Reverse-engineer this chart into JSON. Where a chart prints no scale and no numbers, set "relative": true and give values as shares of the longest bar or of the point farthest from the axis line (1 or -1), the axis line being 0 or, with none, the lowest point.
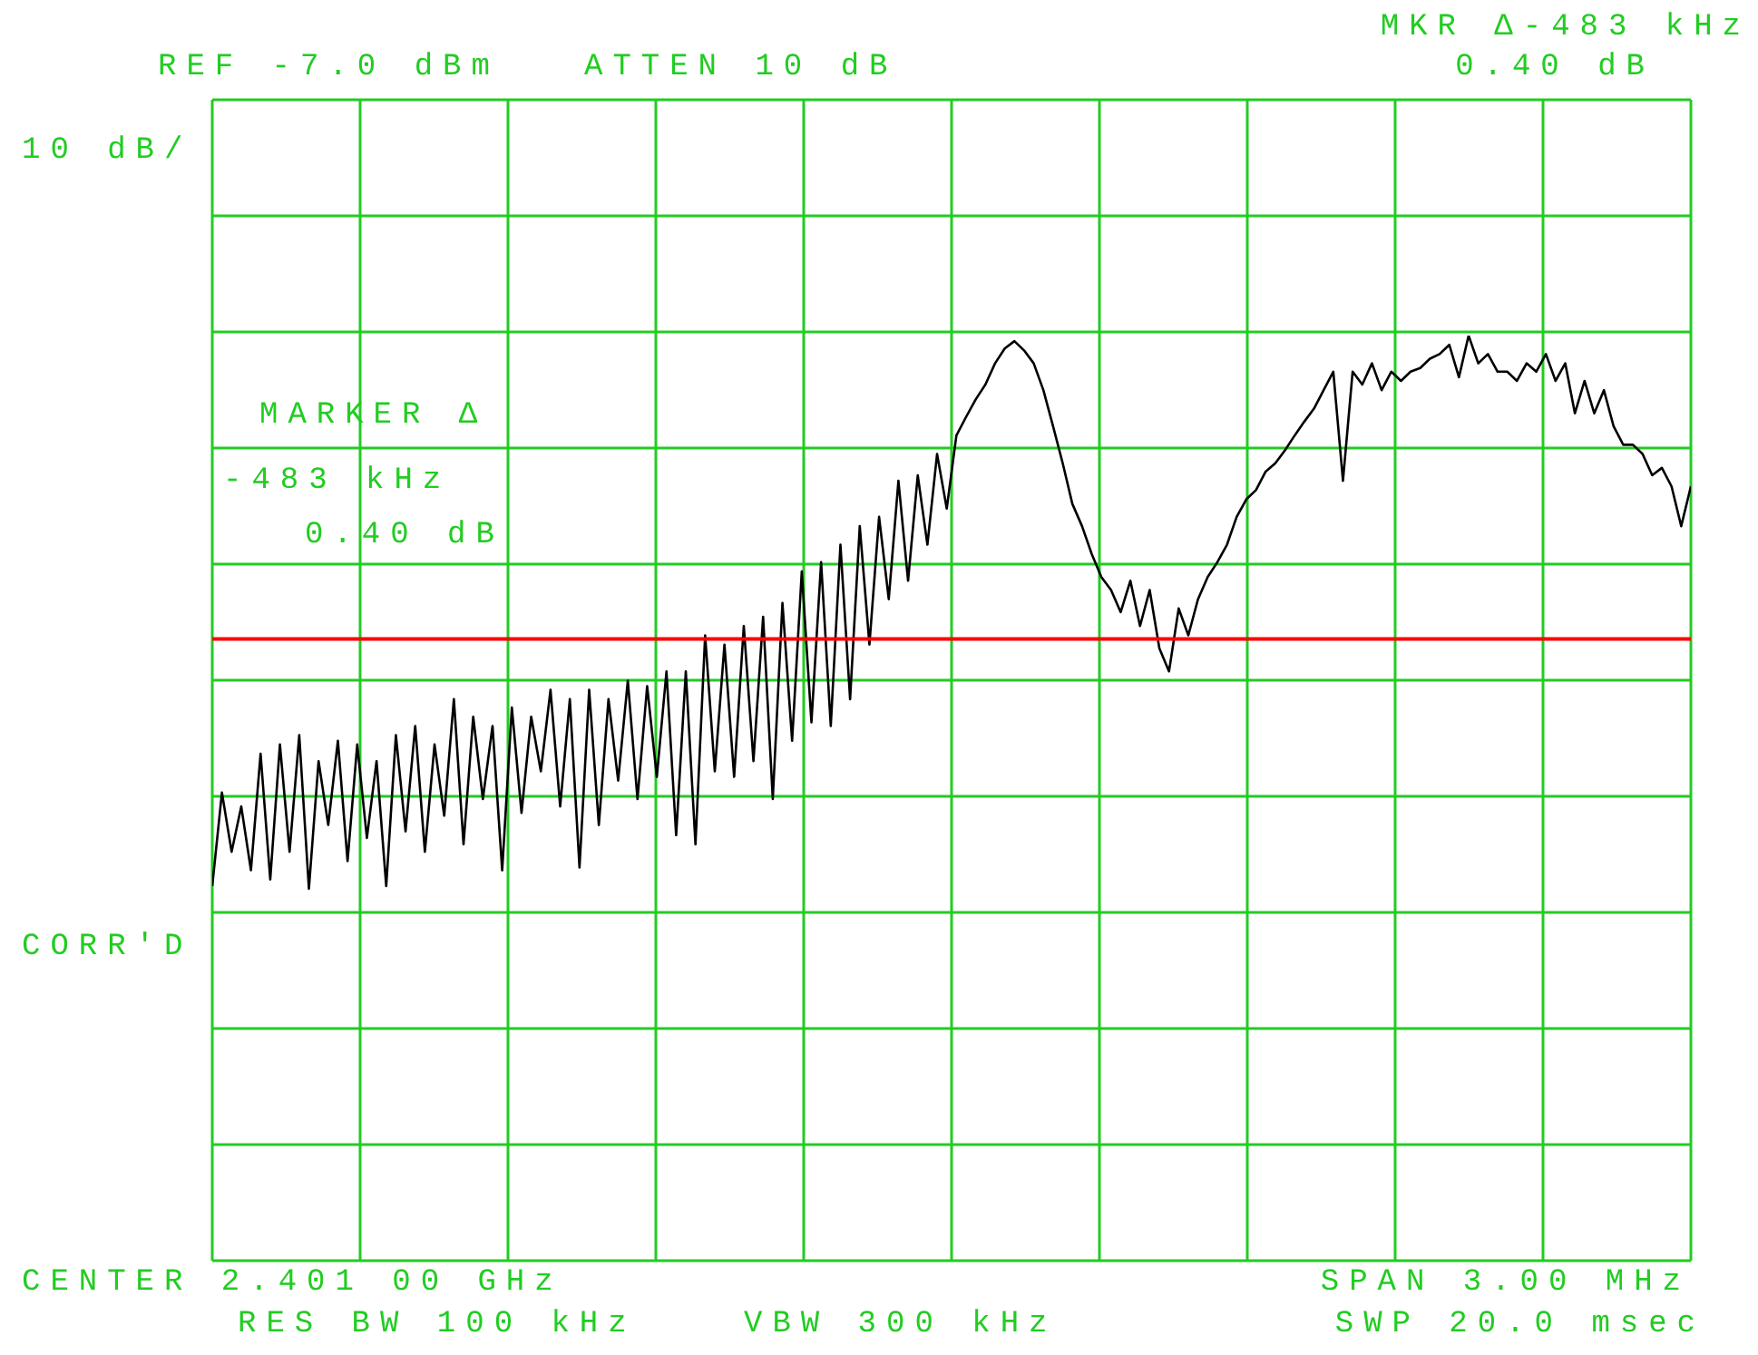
{
  "chart_data": {
    "type": "line",
    "relative": true,
    "annotations": [
      "REF -7.0 dBm",
      "ATTEN 10 dB",
      "MKR Δ-483 kHz",
      "0.40 dB",
      "10 dB/",
      "MARKER Δ",
      "-483 kHz",
      "0.40 dB",
      "CORR'D",
      "CENTER 2.401 00 GHz",
      "RES BW 100 kHz",
      "VBW 300 kHz",
      "SPAN 3.00 MHz",
      "SWP 20.0 msec"
    ],
    "grid": true,
    "line_style": "solid",
    "categories": [
      null,
      null,
      null,
      null,
      null,
      null,
      null,
      null,
      null,
      null,
      null,
      null,
      null,
      null,
      null,
      null,
      null,
      null,
      null,
      null,
      null,
      null,
      null,
      null,
      null,
      null,
      null,
      null,
      null,
      null,
      null,
      null,
      null,
      null,
      null,
      null,
      null,
      null,
      null,
      null,
      null,
      null,
      null,
      null,
      null,
      null,
      null,
      null,
      null,
      null,
      null,
      null,
      null,
      null,
      null,
      null,
      null,
      null,
      null,
      null,
      null,
      null,
      null,
      null,
      null,
      null,
      null,
      null,
      null,
      null,
      null,
      null,
      null,
      null,
      null,
      null,
      null,
      null,
      null,
      null,
      null,
      null,
      null,
      null,
      null,
      null,
      null,
      null,
      null,
      null,
      null,
      null,
      null,
      null,
      null,
      null,
      null,
      null,
      null,
      null,
      null,
      null,
      null,
      null,
      null,
      null,
      null,
      null,
      null,
      null,
      null,
      null,
      null,
      null,
      null,
      null,
      null,
      null,
      null,
      null,
      null,
      null,
      null,
      null,
      null,
      null,
      null,
      null,
      null,
      null,
      null,
      null,
      null,
      null,
      null,
      null,
      null,
      null,
      null,
      null,
      null,
      null,
      null,
      null,
      null,
      null,
      null,
      null,
      null,
      null,
      null,
      null,
      null,
      null
    ],
    "ref_lines": [
      {
        "axis": "y",
        "value": 0.672,
        "color": "#ff0000"
      }
    ],
    "series": [
      {
        "color": "#000000",
        "values": [
          0.405,
          0.506,
          0.442,
          0.491,
          0.422,
          0.548,
          0.412,
          0.558,
          0.442,
          0.568,
          0.402,
          0.54,
          0.471,
          0.562,
          0.432,
          0.558,
          0.457,
          0.54,
          0.405,
          0.568,
          0.464,
          0.578,
          0.442,
          0.558,
          0.481,
          0.607,
          0.45,
          0.588,
          0.499,
          0.578,
          0.422,
          0.598,
          0.484,
          0.588,
          0.529,
          0.617,
          0.491,
          0.607,
          0.425,
          0.617,
          0.471,
          0.607,
          0.519,
          0.627,
          0.499,
          0.621,
          0.523,
          0.637,
          0.46,
          0.637,
          0.45,
          0.676,
          0.529,
          0.666,
          0.523,
          0.686,
          0.54,
          0.696,
          0.499,
          0.711,
          0.562,
          0.745,
          0.582,
          0.755,
          0.578,
          0.774,
          0.607,
          0.794,
          0.666,
          0.804,
          0.715,
          0.843,
          0.735,
          0.849,
          0.774,
          0.872,
          0.813,
          0.892,
          0.912,
          0.931,
          0.947,
          0.97,
          0.986,
          0.994,
          0.984,
          0.97,
          0.941,
          0.902,
          0.862,
          0.818,
          0.794,
          0.764,
          0.739,
          0.725,
          0.701,
          0.735,
          0.686,
          0.725,
          0.662,
          0.637,
          0.705,
          0.676,
          0.715,
          0.739,
          0.755,
          0.774,
          0.804,
          0.823,
          0.833,
          0.853,
          0.862,
          0.876,
          0.892,
          0.907,
          0.921,
          0.941,
          0.961,
          0.843,
          0.961,
          0.947,
          0.97,
          0.941,
          0.961,
          0.951,
          0.961,
          0.965,
          0.975,
          0.98,
          0.99,
          0.955,
          1,
          0.97,
          0.98,
          0.961,
          0.961,
          0.951,
          0.97,
          0.961,
          0.98,
          0.951,
          0.97,
          0.916,
          0.951,
          0.916,
          0.941,
          0.902,
          0.882,
          0.882,
          0.872,
          0.849,
          0.857,
          0.837,
          0.794,
          0.837
        ]
      }
    ]
  }
}
